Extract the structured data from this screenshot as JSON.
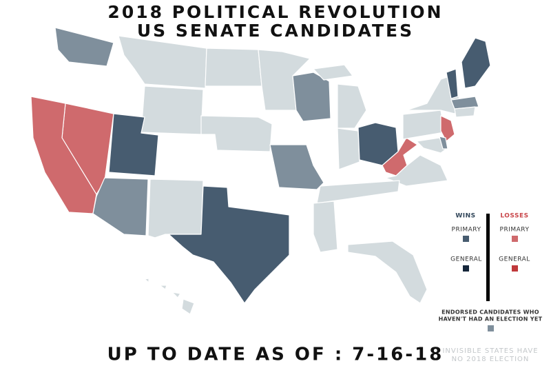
{
  "header": {
    "title_lines": [
      "2018 POLITICAL REVOLUTION",
      "US SENATE CANDIDATES"
    ]
  },
  "legend": {
    "wins": {
      "label": "WINS",
      "color": "#2f4458",
      "items": [
        {
          "label": "PRIMARY",
          "color": "#475c70"
        },
        {
          "label": "GENERAL",
          "color": "#15263a"
        }
      ]
    },
    "losses": {
      "label": "LOSSES",
      "color": "#c9474b",
      "items": [
        {
          "label": "PRIMARY",
          "color": "#cf6a6d"
        },
        {
          "label": "GENERAL",
          "color": "#c0393b"
        }
      ]
    },
    "pending": {
      "label_lines": [
        "ENDORSED CANDIDATES WHO",
        "HAVEN'T HAD AN ELECTION YET"
      ],
      "color": "#7f8f9c"
    }
  },
  "footer": {
    "updated": "UP TO DATE AS OF : 7-16-18",
    "note_lines": [
      "INVISIBLE STATES HAVE",
      "NO 2018 ELECTION"
    ]
  }
}
